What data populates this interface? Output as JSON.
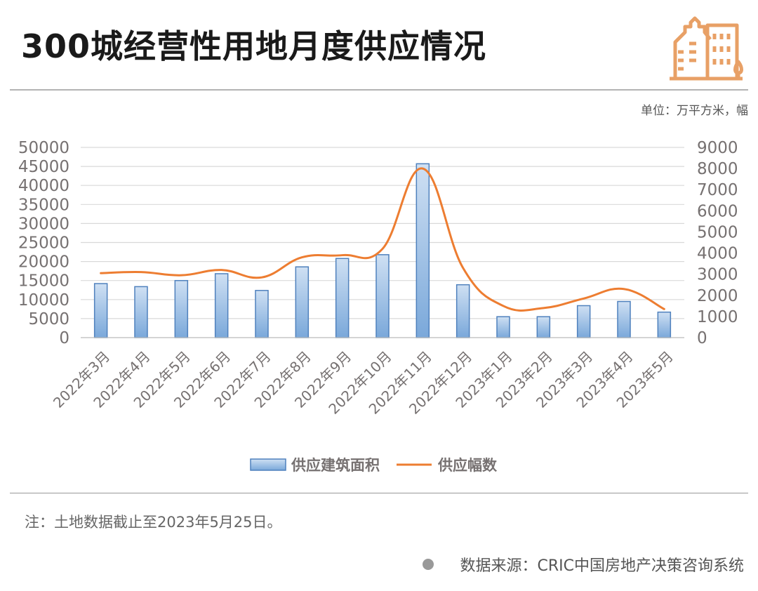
{
  "header": {
    "title": "300城经营性用地月度供应情况",
    "unit": "单位：万平方米，幅"
  },
  "colors": {
    "bar_fill_top": "#cfe0f3",
    "bar_fill_bottom": "#7aa8da",
    "bar_stroke": "#4f81bd",
    "line": "#ed7d31",
    "grid": "#d9d9d9",
    "axis_text": "#767171",
    "logo": "#e8a066"
  },
  "chart_data": {
    "type": "bar",
    "categories": [
      "2022年3月",
      "2022年4月",
      "2022年5月",
      "2022年6月",
      "2022年7月",
      "2022年8月",
      "2022年9月",
      "2022年10月",
      "2022年11月",
      "2022年12月",
      "2023年1月",
      "2023年2月",
      "2023年3月",
      "2023年4月",
      "2023年5月"
    ],
    "series": [
      {
        "name": "供应建筑面积",
        "type": "bar",
        "axis": "left",
        "values": [
          14200,
          13400,
          15000,
          16800,
          12400,
          18600,
          20800,
          21800,
          45700,
          13900,
          5500,
          5500,
          8400,
          9500,
          6700
        ]
      },
      {
        "name": "供应幅数",
        "type": "line",
        "axis": "right",
        "smooth": true,
        "values": [
          3050,
          3100,
          2950,
          3200,
          2850,
          3800,
          3900,
          4200,
          8000,
          3300,
          1500,
          1400,
          1850,
          2300,
          1350
        ]
      }
    ],
    "y_left": {
      "ylim": [
        0,
        50000
      ],
      "ticks": [
        0,
        5000,
        10000,
        15000,
        20000,
        25000,
        30000,
        35000,
        40000,
        45000,
        50000
      ]
    },
    "y_right": {
      "ylim": [
        0,
        9000
      ],
      "ticks": [
        0,
        1000,
        2000,
        3000,
        4000,
        5000,
        6000,
        7000,
        8000,
        9000
      ]
    },
    "grid": true,
    "legend_position": "bottom"
  },
  "footer": {
    "note": "注：土地数据截止至2023年5月25日。",
    "source": "数据来源：CRIC中国房地产决策咨询系统"
  }
}
